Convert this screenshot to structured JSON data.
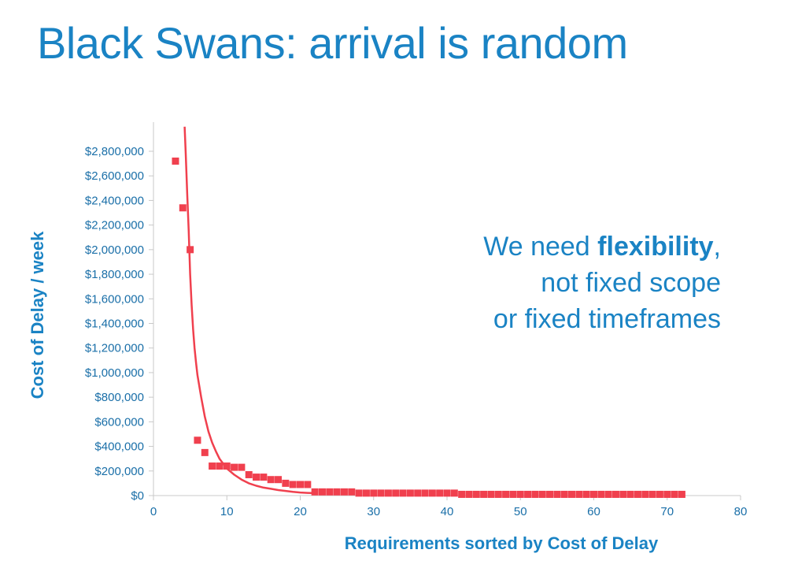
{
  "slide": {
    "title": "Black Swans: arrival is random",
    "callout_pre": "We need ",
    "callout_bold": "flexibility",
    "callout_post": ",",
    "callout_line2": "not fixed scope",
    "callout_line3": "or fixed timeframes"
  },
  "colors": {
    "accent": "#1a83c4",
    "series": "#f0404e",
    "axis": "#c8c8c8"
  },
  "chart_data": {
    "type": "scatter",
    "title": "",
    "xlabel": "Requirements sorted by Cost of Delay",
    "ylabel": "Cost of Delay / week",
    "xlim": [
      0,
      80
    ],
    "ylim": [
      0,
      2800000
    ],
    "xticks": [
      0,
      10,
      20,
      30,
      40,
      50,
      60,
      70,
      80
    ],
    "yticks": [
      0,
      200000,
      400000,
      600000,
      800000,
      1000000,
      1200000,
      1400000,
      1600000,
      1800000,
      2000000,
      2200000,
      2400000,
      2600000,
      2800000
    ],
    "ytick_labels": [
      "$0",
      "$200,000",
      "$400,000",
      "$600,000",
      "$800,000",
      "$1,000,000",
      "$1,200,000",
      "$1,400,000",
      "$1,600,000",
      "$1,800,000",
      "$2,000,000",
      "$2,200,000",
      "$2,400,000",
      "$2,600,000",
      "$2,800,000"
    ],
    "series": [
      {
        "name": "Cost of Delay",
        "x": [
          3,
          4,
          5,
          6,
          7,
          8,
          9,
          10,
          11,
          12,
          13,
          14,
          15,
          16,
          17,
          18,
          19,
          20,
          21,
          22,
          23,
          24,
          25,
          26,
          27,
          28,
          29,
          30,
          31,
          32,
          33,
          34,
          35,
          36,
          37,
          38,
          39,
          40,
          41,
          42,
          43,
          44,
          45,
          46,
          47,
          48,
          49,
          50,
          51,
          52,
          53,
          54,
          55,
          56,
          57,
          58,
          59,
          60,
          61,
          62,
          63,
          64,
          65,
          66,
          67,
          68,
          69,
          70,
          71,
          72
        ],
        "y": [
          2720000,
          2340000,
          2000000,
          450000,
          350000,
          240000,
          240000,
          240000,
          230000,
          230000,
          170000,
          150000,
          150000,
          130000,
          130000,
          100000,
          90000,
          90000,
          90000,
          30000,
          30000,
          30000,
          30000,
          30000,
          30000,
          20000,
          20000,
          20000,
          20000,
          20000,
          20000,
          20000,
          20000,
          20000,
          20000,
          20000,
          20000,
          20000,
          20000,
          10000,
          10000,
          10000,
          10000,
          10000,
          10000,
          10000,
          10000,
          10000,
          10000,
          10000,
          10000,
          10000,
          10000,
          10000,
          10000,
          10000,
          10000,
          10000,
          10000,
          10000,
          10000,
          10000,
          10000,
          10000,
          10000,
          10000,
          10000,
          10000,
          10000,
          10000
        ]
      },
      {
        "name": "Trend",
        "type": "line",
        "x": [
          4.25,
          4.4,
          4.6,
          4.8,
          5,
          5.2,
          5.4,
          5.6,
          5.8,
          6,
          6.5,
          7,
          7.5,
          8,
          8.5,
          9,
          10,
          11,
          12,
          13,
          14,
          15,
          16,
          17,
          18,
          19,
          20,
          21,
          22
        ],
        "y": [
          3000000,
          2780000,
          2450000,
          2150000,
          1800000,
          1550000,
          1350000,
          1200000,
          1080000,
          980000,
          800000,
          640000,
          520000,
          430000,
          360000,
          300000,
          220000,
          170000,
          130000,
          100000,
          80000,
          65000,
          55000,
          45000,
          38000,
          30000,
          25000,
          22000,
          20000
        ]
      }
    ]
  }
}
